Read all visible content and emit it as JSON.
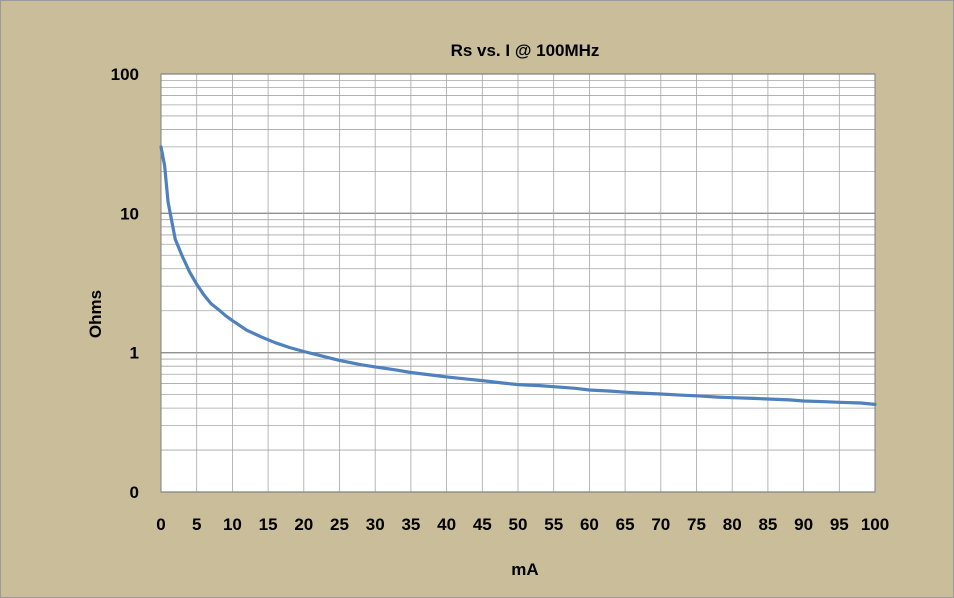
{
  "chart_data": {
    "type": "line",
    "title": "Rs vs. I @ 100MHz",
    "xlabel": "mA",
    "ylabel": "Ohms",
    "xlim": [
      0,
      100
    ],
    "ylim": [
      0.1,
      100
    ],
    "y_scale": "log",
    "x_ticks": [
      "0",
      "5",
      "10",
      "15",
      "20",
      "25",
      "30",
      "35",
      "40",
      "45",
      "50",
      "55",
      "60",
      "65",
      "70",
      "75",
      "80",
      "85",
      "90",
      "95",
      "100"
    ],
    "y_ticks": [
      {
        "value": 0.1,
        "label": "0"
      },
      {
        "value": 1,
        "label": "1"
      },
      {
        "value": 10,
        "label": "10"
      },
      {
        "value": 100,
        "label": "100"
      }
    ],
    "grid": true,
    "colors": {
      "background": "#c9bd9a",
      "plot_area": "#ffffff",
      "grid": "#a6a6a6",
      "line": "#4f81bd"
    },
    "series": [
      {
        "x": [
          0,
          0.5,
          1,
          2,
          3,
          4,
          5,
          6,
          7,
          8,
          9,
          10,
          12,
          14,
          16,
          18,
          20,
          22,
          25,
          28,
          30,
          33,
          35,
          38,
          40,
          43,
          45,
          48,
          50,
          53,
          55,
          58,
          60,
          63,
          65,
          68,
          70,
          73,
          75,
          78,
          80,
          83,
          85,
          88,
          90,
          93,
          95,
          98,
          100
        ],
        "y": [
          30,
          22,
          12,
          6.5,
          4.9,
          3.8,
          3.1,
          2.6,
          2.25,
          2.05,
          1.85,
          1.7,
          1.45,
          1.3,
          1.18,
          1.09,
          1.02,
          0.96,
          0.88,
          0.82,
          0.79,
          0.75,
          0.72,
          0.69,
          0.67,
          0.645,
          0.63,
          0.605,
          0.59,
          0.58,
          0.57,
          0.555,
          0.54,
          0.53,
          0.52,
          0.51,
          0.505,
          0.495,
          0.49,
          0.48,
          0.475,
          0.47,
          0.465,
          0.458,
          0.45,
          0.445,
          0.44,
          0.435,
          0.425
        ]
      }
    ]
  }
}
